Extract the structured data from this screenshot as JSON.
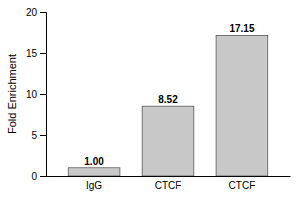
{
  "chart_data": {
    "type": "bar",
    "categories": [
      "IgG",
      "CTCF",
      "CTCF"
    ],
    "values": [
      1.0,
      8.52,
      17.15
    ],
    "value_labels": [
      "1.00",
      "8.52",
      "17.15"
    ],
    "data_labels": true,
    "ylabel": "Fold Enrichment",
    "ylim": [
      0,
      20
    ],
    "yticks": [
      0,
      5,
      10,
      15,
      20
    ],
    "color": "#c8c8c8",
    "grid": false
  }
}
